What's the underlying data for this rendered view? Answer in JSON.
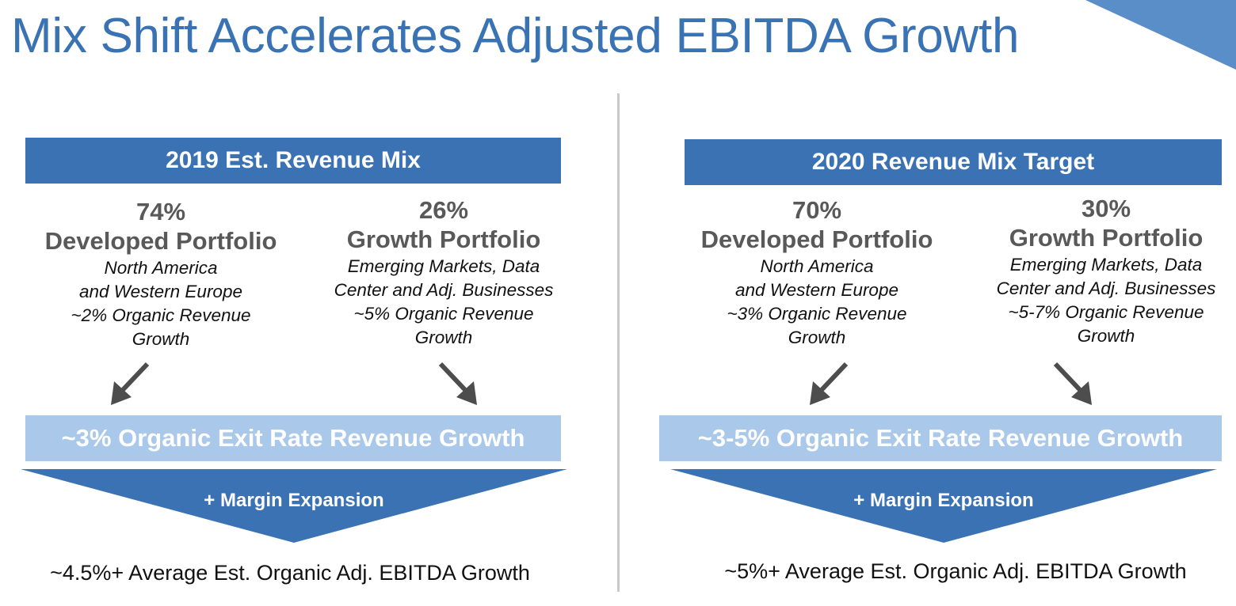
{
  "title": "Mix Shift Accelerates Adjusted EBITDA Growth",
  "colors": {
    "title_blue": "#3a73b4",
    "header_blue": "#3a72b4",
    "band_light_blue": "#a9c8ea",
    "arrow_gray": "#4d4d4d"
  },
  "panels": [
    {
      "header": "2019 Est. Revenue Mix",
      "developed": {
        "pct": "74%",
        "name": "Developed Portfolio",
        "desc_lines": [
          "North America",
          "and Western Europe",
          "~2% Organic Revenue",
          "Growth"
        ]
      },
      "growth": {
        "pct": "26%",
        "name": "Growth Portfolio",
        "desc_lines": [
          "Emerging Markets, Data",
          "Center and Adj. Businesses",
          "~5% Organic Revenue",
          "Growth"
        ]
      },
      "band": "~3% Organic Exit Rate Revenue Growth",
      "margin": "+ Margin Expansion",
      "result": "~4.5%+ Average Est. Organic Adj. EBITDA Growth"
    },
    {
      "header": "2020 Revenue Mix Target",
      "developed": {
        "pct": "70%",
        "name": "Developed Portfolio",
        "desc_lines": [
          "North America",
          "and Western Europe",
          "~3% Organic Revenue",
          "Growth"
        ]
      },
      "growth": {
        "pct": "30%",
        "name": "Growth Portfolio",
        "desc_lines": [
          "Emerging Markets, Data",
          "Center and Adj. Businesses",
          "~5-7% Organic Revenue",
          "Growth"
        ]
      },
      "band": "~3-5% Organic Exit Rate Revenue Growth",
      "margin": "+ Margin Expansion",
      "result": "~5%+ Average Est. Organic Adj. EBITDA Growth"
    }
  ]
}
